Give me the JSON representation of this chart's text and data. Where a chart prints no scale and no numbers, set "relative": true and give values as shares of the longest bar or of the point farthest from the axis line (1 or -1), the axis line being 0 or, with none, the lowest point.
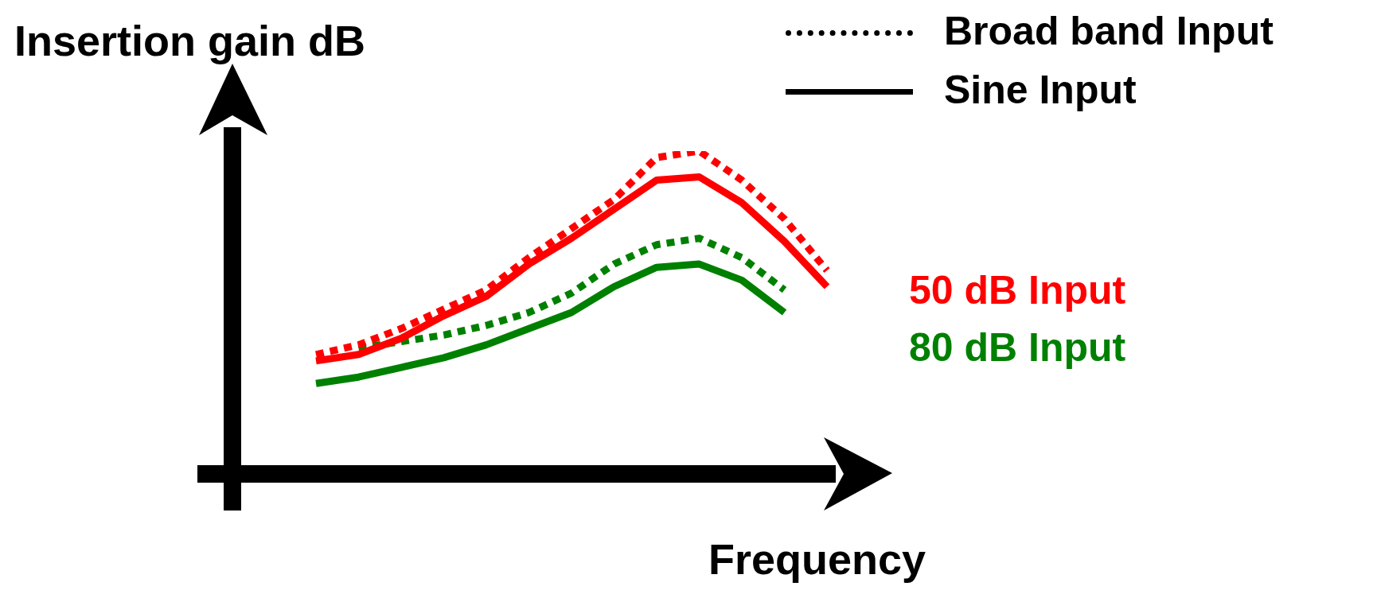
{
  "chart_data": {
    "type": "line",
    "relative": true,
    "ylabel": "Insertion gain dB",
    "xlabel": "Frequency",
    "legend": false,
    "marker": "none",
    "categories": [
      null,
      null,
      null,
      null,
      null,
      null,
      null,
      null,
      null,
      null,
      null,
      null,
      null
    ],
    "series": [
      {
        "color": "#ff0000",
        "line_style": "dotted",
        "values": [
          0.37,
          0.4,
          0.45,
          0.51,
          0.57,
          0.67,
          0.76,
          0.85,
          0.98,
          1.0,
          0.91,
          0.79,
          0.63
        ]
      },
      {
        "color": "#ff0000",
        "line_style": "solid",
        "values": [
          0.35,
          0.37,
          0.42,
          0.49,
          0.55,
          0.65,
          0.73,
          0.82,
          0.91,
          0.92,
          0.84,
          0.72,
          0.58
        ]
      },
      {
        "color": "#008000",
        "line_style": "dotted",
        "values": [
          null,
          0.39,
          0.41,
          0.43,
          0.46,
          0.5,
          0.56,
          0.65,
          0.71,
          0.73,
          0.67,
          0.57,
          null
        ]
      },
      {
        "color": "#008000",
        "line_style": "solid",
        "values": [
          0.28,
          0.3,
          0.33,
          0.36,
          0.4,
          0.45,
          0.5,
          0.58,
          0.64,
          0.65,
          0.6,
          0.5,
          null
        ]
      }
    ],
    "annotations": [
      "Broad band Input",
      "Sine Input",
      "50 dB Input",
      "80 dB Input"
    ]
  }
}
